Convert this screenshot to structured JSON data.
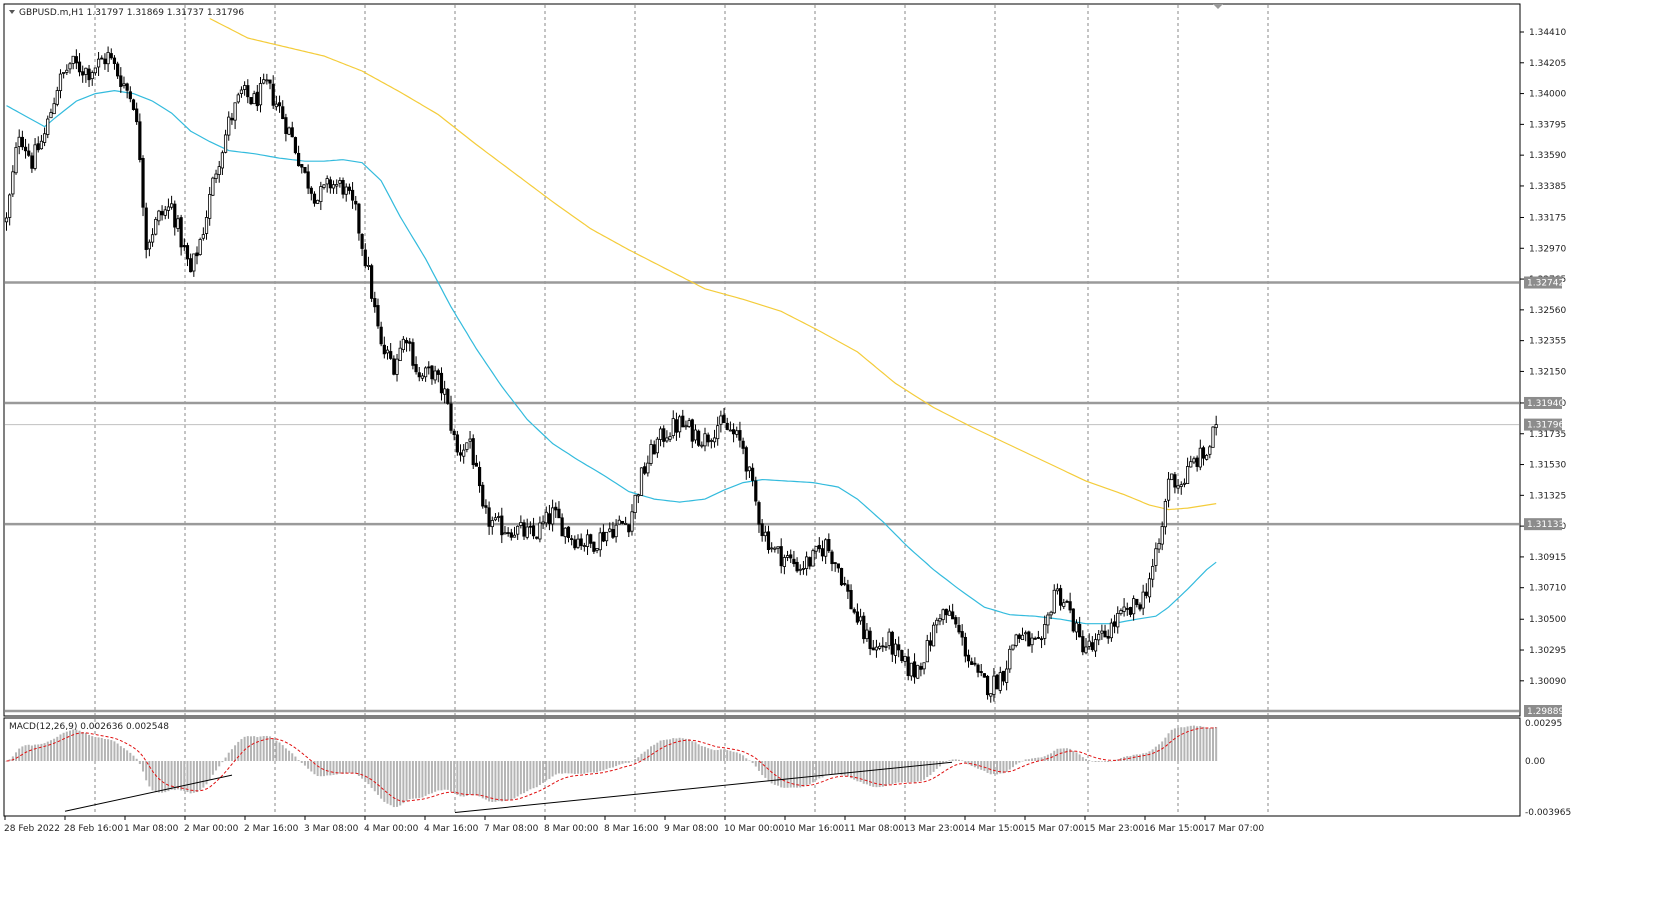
{
  "window": {
    "symbol_line": "GBPUSD.m,H1  1.31797 1.31869 1.31737 1.31796",
    "macd_line": "MACD(12,26,9) 0.002636 0.002548"
  },
  "colors": {
    "candle": "#000000",
    "ma_fast": "#33bbdd",
    "ma_slow": "#f4cc3a",
    "level": "#9a9a9a",
    "tag_bg": "#8c8c8c",
    "macd_hist": "#b4b4b4",
    "macd_signal": "#e01010",
    "grid": "#8a8a8a"
  },
  "chart_data": [
    {
      "type": "candlestick",
      "title": "GBPUSD.m,H1",
      "ylim": [
        1.29889,
        1.3453
      ],
      "y_ticks": [
        "1.34410",
        "1.34205",
        "1.34000",
        "1.33795",
        "1.33590",
        "1.33385",
        "1.33175",
        "1.32970",
        "1.32765",
        "1.32560",
        "1.32355",
        "1.32150",
        "1.31940",
        "1.31735",
        "1.31530",
        "1.31325",
        "1.31120",
        "1.30915",
        "1.30710",
        "1.30500",
        "1.30295",
        "1.30090"
      ],
      "x_ticks": [
        "28 Feb 2022",
        "28 Feb 16:00",
        "1 Mar 08:00",
        "2 Mar 00:00",
        "2 Mar 16:00",
        "3 Mar 08:00",
        "4 Mar 00:00",
        "4 Mar 16:00",
        "7 Mar 08:00",
        "8 Mar 00:00",
        "8 Mar 16:00",
        "9 Mar 08:00",
        "10 Mar 00:00",
        "10 Mar 16:00",
        "11 Mar 08:00",
        "13 Mar 23:00",
        "14 Mar 15:00",
        "15 Mar 07:00",
        "15 Mar 23:00",
        "16 Mar 15:00",
        "17 Mar 07:00"
      ],
      "current_price": "1.31796",
      "levels": [
        {
          "value": 1.32742,
          "label": "1.32742"
        },
        {
          "value": 1.3194,
          "label": "1.31940"
        },
        {
          "value": 1.31133,
          "label": "1.31133"
        },
        {
          "value": 1.29889,
          "label": "1.29889"
        }
      ],
      "anchors": [
        [
          0,
          1.3315
        ],
        [
          4,
          1.3375
        ],
        [
          8,
          1.3355
        ],
        [
          12,
          1.3372
        ],
        [
          16,
          1.3405
        ],
        [
          20,
          1.342
        ],
        [
          26,
          1.3415
        ],
        [
          32,
          1.3425
        ],
        [
          36,
          1.341
        ],
        [
          40,
          1.3395
        ],
        [
          42,
          1.336
        ],
        [
          44,
          1.33
        ],
        [
          48,
          1.3318
        ],
        [
          52,
          1.3325
        ],
        [
          56,
          1.3295
        ],
        [
          58,
          1.328
        ],
        [
          62,
          1.331
        ],
        [
          66,
          1.335
        ],
        [
          70,
          1.338
        ],
        [
          74,
          1.34
        ],
        [
          78,
          1.3395
        ],
        [
          82,
          1.3405
        ],
        [
          86,
          1.339
        ],
        [
          90,
          1.337
        ],
        [
          94,
          1.3345
        ],
        [
          98,
          1.333
        ],
        [
          102,
          1.334
        ],
        [
          106,
          1.3338
        ],
        [
          110,
          1.332
        ],
        [
          114,
          1.328
        ],
        [
          118,
          1.323
        ],
        [
          122,
          1.322
        ],
        [
          126,
          1.324
        ],
        [
          130,
          1.321
        ],
        [
          134,
          1.3215
        ],
        [
          138,
          1.32
        ],
        [
          142,
          1.316
        ],
        [
          146,
          1.317
        ],
        [
          150,
          1.312
        ],
        [
          154,
          1.3112
        ],
        [
          160,
          1.311
        ],
        [
          166,
          1.3105
        ],
        [
          172,
          1.312
        ],
        [
          178,
          1.3105
        ],
        [
          184,
          1.31
        ],
        [
          190,
          1.311
        ],
        [
          196,
          1.3115
        ],
        [
          200,
          1.3145
        ],
        [
          204,
          1.3165
        ],
        [
          208,
          1.3175
        ],
        [
          212,
          1.318
        ],
        [
          216,
          1.3175
        ],
        [
          220,
          1.317
        ],
        [
          224,
          1.318
        ],
        [
          228,
          1.3175
        ],
        [
          232,
          1.3165
        ],
        [
          234,
          1.3145
        ],
        [
          238,
          1.311
        ],
        [
          242,
          1.3095
        ],
        [
          246,
          1.309
        ],
        [
          250,
          1.3085
        ],
        [
          254,
          1.309
        ],
        [
          258,
          1.31
        ],
        [
          262,
          1.3085
        ],
        [
          266,
          1.306
        ],
        [
          270,
          1.304
        ],
        [
          274,
          1.303
        ],
        [
          278,
          1.3035
        ],
        [
          282,
          1.302
        ],
        [
          286,
          1.3015
        ],
        [
          290,
          1.303
        ],
        [
          294,
          1.3055
        ],
        [
          298,
          1.305
        ],
        [
          302,
          1.303
        ],
        [
          306,
          1.301
        ],
        [
          310,
          1.3005
        ],
        [
          314,
          1.3015
        ],
        [
          318,
          1.304
        ],
        [
          322,
          1.3035
        ],
        [
          326,
          1.303
        ],
        [
          330,
          1.307
        ],
        [
          334,
          1.306
        ],
        [
          338,
          1.3035
        ],
        [
          342,
          1.303
        ],
        [
          346,
          1.304
        ],
        [
          350,
          1.305
        ],
        [
          354,
          1.3055
        ],
        [
          358,
          1.3065
        ],
        [
          362,
          1.309
        ],
        [
          364,
          1.311
        ],
        [
          366,
          1.3145
        ],
        [
          370,
          1.314
        ],
        [
          374,
          1.3155
        ],
        [
          378,
          1.316
        ],
        [
          381,
          1.3179
        ]
      ],
      "ma_fast_anchors": [
        [
          0,
          1.3392
        ],
        [
          6,
          1.3385
        ],
        [
          12,
          1.3378
        ],
        [
          16,
          1.3385
        ],
        [
          22,
          1.3395
        ],
        [
          28,
          1.34
        ],
        [
          34,
          1.3402
        ],
        [
          40,
          1.34
        ],
        [
          46,
          1.3395
        ],
        [
          52,
          1.3387
        ],
        [
          58,
          1.3375
        ],
        [
          64,
          1.3368
        ],
        [
          70,
          1.3362
        ],
        [
          78,
          1.336
        ],
        [
          86,
          1.3357
        ],
        [
          94,
          1.3355
        ],
        [
          100,
          1.3355
        ],
        [
          106,
          1.3356
        ],
        [
          112,
          1.3354
        ],
        [
          118,
          1.3342
        ],
        [
          124,
          1.3318
        ],
        [
          132,
          1.329
        ],
        [
          140,
          1.3258
        ],
        [
          148,
          1.323
        ],
        [
          156,
          1.3205
        ],
        [
          164,
          1.3183
        ],
        [
          172,
          1.3167
        ],
        [
          180,
          1.3156
        ],
        [
          188,
          1.3146
        ],
        [
          196,
          1.3135
        ],
        [
          204,
          1.313
        ],
        [
          212,
          1.3128
        ],
        [
          220,
          1.313
        ],
        [
          226,
          1.3136
        ],
        [
          232,
          1.3141
        ],
        [
          238,
          1.3143
        ],
        [
          246,
          1.3142
        ],
        [
          254,
          1.3141
        ],
        [
          262,
          1.3138
        ],
        [
          268,
          1.313
        ],
        [
          276,
          1.3115
        ],
        [
          284,
          1.3098
        ],
        [
          292,
          1.3083
        ],
        [
          300,
          1.307
        ],
        [
          308,
          1.3058
        ],
        [
          316,
          1.3053
        ],
        [
          324,
          1.3052
        ],
        [
          332,
          1.305
        ],
        [
          340,
          1.3047
        ],
        [
          348,
          1.3047
        ],
        [
          356,
          1.305
        ],
        [
          362,
          1.3052
        ],
        [
          366,
          1.3058
        ],
        [
          372,
          1.307
        ],
        [
          378,
          1.3083
        ],
        [
          381,
          1.3088
        ]
      ],
      "ma_slow_anchors": [
        [
          64,
          1.345
        ],
        [
          76,
          1.3437
        ],
        [
          88,
          1.3431
        ],
        [
          100,
          1.3425
        ],
        [
          112,
          1.3415
        ],
        [
          124,
          1.3401
        ],
        [
          136,
          1.3386
        ],
        [
          148,
          1.3366
        ],
        [
          160,
          1.3347
        ],
        [
          172,
          1.3328
        ],
        [
          184,
          1.331
        ],
        [
          196,
          1.3296
        ],
        [
          208,
          1.3283
        ],
        [
          220,
          1.327
        ],
        [
          232,
          1.3263
        ],
        [
          244,
          1.3255
        ],
        [
          256,
          1.3242
        ],
        [
          268,
          1.3228
        ],
        [
          280,
          1.3207
        ],
        [
          292,
          1.3191
        ],
        [
          304,
          1.3178
        ],
        [
          316,
          1.3166
        ],
        [
          328,
          1.3154
        ],
        [
          340,
          1.3142
        ],
        [
          352,
          1.3133
        ],
        [
          360,
          1.3126
        ],
        [
          366,
          1.3123
        ],
        [
          372,
          1.3124
        ],
        [
          378,
          1.3126
        ],
        [
          381,
          1.3127
        ]
      ]
    },
    {
      "type": "bar",
      "title": "MACD(12,26,9)",
      "ylim": [
        -0.0042,
        0.0033
      ],
      "y_ticks": [
        "0.00295",
        "0.00",
        "-0.003965"
      ],
      "series": [
        {
          "name": "MACD",
          "values": "histogram"
        },
        {
          "name": "Signal",
          "values": "dashed line"
        }
      ],
      "last_values": {
        "macd": 0.002636,
        "signal": 0.002548
      },
      "trendlines": [
        {
          "from": [
            "28 Feb 16:00",
            -0.0039
          ],
          "to": [
            "2 Mar 00:00",
            -0.0011
          ]
        },
        {
          "from": [
            "4 Mar 16:00",
            -0.004
          ],
          "to": [
            "13 Mar 23:00",
            -0.0001
          ]
        }
      ]
    }
  ]
}
